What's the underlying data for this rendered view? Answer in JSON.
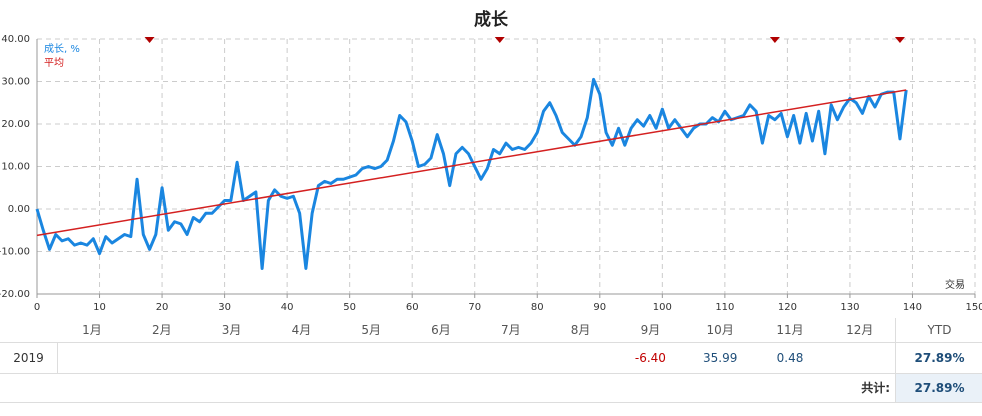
{
  "chart_data": {
    "type": "line",
    "title": "成长",
    "x_label": "交易",
    "x": [
      0,
      1,
      2,
      3,
      4,
      5,
      6,
      7,
      8,
      9,
      10,
      11,
      12,
      13,
      14,
      15,
      16,
      17,
      18,
      19,
      20,
      21,
      22,
      23,
      24,
      25,
      26,
      27,
      28,
      29,
      30,
      31,
      32,
      33,
      34,
      35,
      36,
      37,
      38,
      39,
      40,
      41,
      42,
      43,
      44,
      45,
      46,
      47,
      48,
      49,
      50,
      51,
      52,
      53,
      54,
      55,
      56,
      57,
      58,
      59,
      60,
      61,
      62,
      63,
      64,
      65,
      66,
      67,
      68,
      69,
      70,
      71,
      72,
      73,
      74,
      75,
      76,
      77,
      78,
      79,
      80,
      81,
      82,
      83,
      84,
      85,
      86,
      87,
      88,
      89,
      90,
      91,
      92,
      93,
      94,
      95,
      96,
      97,
      98,
      99,
      100,
      101,
      102,
      103,
      104,
      105,
      106,
      107,
      108,
      109,
      110,
      111,
      112,
      113,
      114,
      115,
      116,
      117,
      118,
      119,
      120,
      121,
      122,
      123,
      124,
      125,
      126,
      127,
      128,
      129,
      130,
      131,
      132,
      133,
      134,
      135,
      136,
      137,
      138,
      139
    ],
    "series": [
      {
        "name": "成长, %",
        "color": "#1a86e0",
        "values": [
          0,
          -5,
          -9.5,
          -6,
          -7.5,
          -7,
          -8.5,
          -8,
          -8.5,
          -7,
          -10.5,
          -6.5,
          -8,
          -7,
          -6,
          -6.5,
          7,
          -6,
          -9.5,
          -6,
          5,
          -5,
          -3,
          -3.5,
          -6,
          -2,
          -3,
          -1,
          -1,
          0.5,
          2,
          2,
          11,
          2,
          3,
          4,
          -14,
          2,
          4.5,
          3,
          2.5,
          3,
          -1,
          -14,
          -1,
          5.5,
          6.5,
          6,
          7,
          7,
          7.5,
          8,
          9.5,
          10,
          9.5,
          10,
          11.5,
          16,
          22,
          20.5,
          16,
          10,
          10.5,
          12,
          17.5,
          13,
          5.5,
          13,
          14.5,
          13,
          10,
          7,
          9.5,
          14,
          13,
          15.5,
          14,
          14.5,
          14,
          15.5,
          18,
          23,
          25,
          22,
          18,
          16.5,
          15,
          17,
          21.5,
          30.5,
          27,
          18,
          15,
          19,
          15,
          19,
          21,
          19.5,
          22,
          19,
          23.5,
          19,
          21,
          19,
          17,
          19,
          20,
          20,
          21.5,
          20.5,
          23,
          21,
          21.5,
          22,
          24.5,
          23,
          15.5,
          22,
          21,
          22.5,
          17,
          22,
          15.5,
          22.5,
          16,
          23,
          13,
          24.5,
          21,
          24,
          26,
          25,
          22.5,
          26.5,
          24,
          27,
          27.5,
          27.5,
          16.5,
          28
        ]
      },
      {
        "name": "平均",
        "color": "#d42020",
        "x": [
          0,
          139
        ],
        "values": [
          -6.2,
          28
        ]
      }
    ],
    "markers": [
      18,
      74,
      118,
      138
    ],
    "marker_color": "#b00000",
    "xlim": [
      0,
      150
    ],
    "xticks": [
      0,
      10,
      20,
      30,
      40,
      50,
      60,
      70,
      80,
      90,
      100,
      110,
      120,
      130,
      140,
      150
    ],
    "ylim": [
      -20,
      40
    ],
    "yticks": [
      {
        "value": -20,
        "label": "-20.00"
      },
      {
        "value": -10,
        "label": "-10.00"
      },
      {
        "value": 0,
        "label": "0.00"
      },
      {
        "value": 10,
        "label": "10.00"
      },
      {
        "value": 20,
        "label": "20.00"
      },
      {
        "value": 30,
        "label": "30.00"
      },
      {
        "value": 40,
        "label": "40.00"
      }
    ],
    "grid": true
  },
  "table": {
    "months": [
      "1月",
      "2月",
      "3月",
      "4月",
      "5月",
      "6月",
      "7月",
      "8月",
      "9月",
      "10月",
      "11月",
      "12月"
    ],
    "ytd_header": "YTD",
    "rows": [
      {
        "year": "2019",
        "values": [
          null,
          null,
          null,
          null,
          null,
          null,
          null,
          null,
          "-6.40",
          "35.99",
          "0.48",
          null
        ],
        "ytd": "27.89%"
      }
    ],
    "total_label": "共计:",
    "total": "27.89%"
  }
}
